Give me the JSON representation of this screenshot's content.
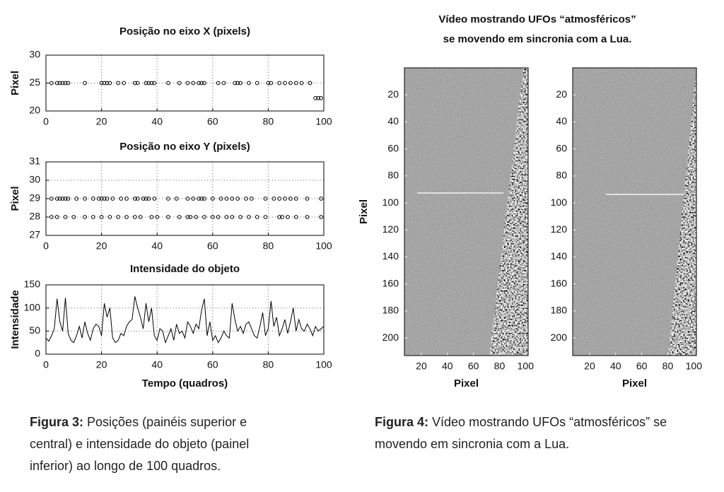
{
  "chart_data": [
    {
      "type": "scatter",
      "title": "Posição no eixo X (pixels)",
      "ylabel": "Pixel",
      "x": [
        2,
        4,
        5,
        6,
        7,
        8,
        14,
        20,
        21,
        22,
        23,
        26,
        28,
        32,
        33,
        36,
        37,
        38,
        39,
        44,
        48,
        51,
        53,
        55,
        56,
        57,
        62,
        64,
        68,
        69,
        70,
        73,
        76,
        80,
        81,
        84,
        86,
        88,
        90,
        92,
        95,
        97,
        98,
        99
      ],
      "values": [
        25,
        25,
        25,
        25,
        25,
        25,
        25,
        25,
        25,
        25,
        25,
        25,
        25,
        25,
        25,
        25,
        25,
        25,
        25,
        25,
        25,
        25,
        25,
        25,
        25,
        25,
        25,
        25,
        25,
        25,
        25,
        25,
        25,
        25,
        25,
        25,
        25,
        25,
        25,
        25,
        25,
        22.3,
        22.3,
        22.3
      ],
      "xlim": [
        0,
        100
      ],
      "ylim": [
        20,
        30
      ],
      "xticks": [
        0,
        20,
        40,
        60,
        80,
        100
      ],
      "yticks": [
        20,
        25,
        30
      ],
      "grid": true
    },
    {
      "type": "scatter",
      "title": "Posição no eixo Y (pixels)",
      "ylabel": "Pixel",
      "x": [
        2,
        4,
        5,
        6,
        7,
        8,
        11,
        14,
        17,
        19,
        20,
        21,
        22,
        24,
        27,
        29,
        32,
        33,
        35,
        36,
        37,
        39,
        44,
        47,
        51,
        53,
        55,
        56,
        57,
        60,
        63,
        65,
        67,
        69,
        72,
        74,
        79,
        82,
        84,
        86,
        88,
        90,
        94,
        99,
        2,
        4,
        7,
        10,
        14,
        17,
        20,
        23,
        26,
        29,
        32,
        34,
        38,
        40,
        44,
        48,
        51,
        52,
        54,
        57,
        60,
        62,
        65,
        67,
        70,
        73,
        76,
        79,
        84,
        85,
        87,
        90,
        94,
        99
      ],
      "values": [
        29,
        29,
        29,
        29,
        29,
        29,
        29,
        29,
        29,
        29,
        29,
        29,
        29,
        29,
        29,
        29,
        29,
        29,
        29,
        29,
        29,
        29,
        29,
        29,
        29,
        29,
        29,
        29,
        29,
        29,
        29,
        29,
        29,
        29,
        29,
        29,
        29,
        29,
        29,
        29,
        29,
        29,
        29,
        29,
        28,
        28,
        28,
        28,
        28,
        28,
        28,
        28,
        28,
        28,
        28,
        28,
        28,
        28,
        28,
        28,
        28,
        28,
        28,
        28,
        28,
        28,
        28,
        28,
        28,
        28,
        28,
        28,
        28,
        28,
        28,
        28,
        28,
        28
      ],
      "xlim": [
        0,
        100
      ],
      "ylim": [
        27,
        31
      ],
      "xticks": [
        0,
        20,
        40,
        60,
        80,
        100
      ],
      "yticks": [
        27,
        28,
        29,
        30,
        31
      ],
      "grid": true
    },
    {
      "type": "line",
      "title": "Intensidade do objeto",
      "ylabel": "Intensidade",
      "xlabel": "Tempo (quadros)",
      "x": [
        0,
        1,
        2,
        3,
        4,
        5,
        6,
        7,
        8,
        9,
        10,
        11,
        12,
        13,
        14,
        15,
        16,
        17,
        18,
        19,
        20,
        21,
        22,
        23,
        24,
        25,
        26,
        27,
        28,
        29,
        30,
        31,
        32,
        33,
        34,
        35,
        36,
        37,
        38,
        39,
        40,
        41,
        42,
        43,
        44,
        45,
        46,
        47,
        48,
        49,
        50,
        51,
        52,
        53,
        54,
        55,
        56,
        57,
        58,
        59,
        60,
        61,
        62,
        63,
        64,
        65,
        66,
        67,
        68,
        69,
        70,
        71,
        72,
        73,
        74,
        75,
        76,
        77,
        78,
        79,
        80,
        81,
        82,
        83,
        84,
        85,
        86,
        87,
        88,
        89,
        90,
        91,
        92,
        93,
        94,
        95,
        96,
        97,
        98,
        99,
        100
      ],
      "values": [
        35,
        28,
        40,
        55,
        120,
        70,
        50,
        122,
        45,
        30,
        25,
        40,
        60,
        35,
        70,
        45,
        30,
        55,
        65,
        60,
        40,
        110,
        80,
        100,
        35,
        25,
        30,
        45,
        40,
        60,
        70,
        75,
        125,
        100,
        80,
        55,
        110,
        70,
        100,
        40,
        30,
        55,
        50,
        25,
        40,
        55,
        30,
        65,
        45,
        50,
        35,
        70,
        60,
        45,
        65,
        55,
        95,
        120,
        40,
        70,
        30,
        40,
        25,
        35,
        50,
        40,
        35,
        110,
        75,
        50,
        60,
        45,
        65,
        70,
        55,
        40,
        35,
        60,
        90,
        40,
        55,
        115,
        60,
        80,
        40,
        55,
        75,
        45,
        70,
        100,
        50,
        75,
        55,
        50,
        65,
        55,
        40,
        60,
        50,
        55,
        60
      ],
      "xlim": [
        0,
        100
      ],
      "ylim": [
        0,
        150
      ],
      "xticks": [
        0,
        20,
        40,
        60,
        80,
        100
      ],
      "yticks": [
        0,
        50,
        100,
        150
      ],
      "grid": true
    },
    {
      "type": "image",
      "title": "Vídeo mostrando UFOs “atmosféricos”",
      "subtitle": "se movendo em sincronia com a Lua.",
      "ylabel": "Pixel",
      "xlabel": "Pixel",
      "xlim": [
        7,
        102
      ],
      "ylim": [
        0,
        213
      ],
      "invert_y": true,
      "xticks": [
        20,
        40,
        60,
        80,
        100
      ],
      "yticks": [
        20,
        40,
        60,
        80,
        100,
        120,
        140,
        160,
        180,
        200
      ],
      "grid": false
    },
    {
      "type": "image",
      "xlabel": "Pixel",
      "xlim": [
        7,
        102
      ],
      "ylim": [
        0,
        213
      ],
      "invert_y": true,
      "xticks": [
        20,
        40,
        60,
        80,
        100
      ],
      "yticks": [
        20,
        40,
        60,
        80,
        100,
        120,
        140,
        160,
        180,
        200
      ],
      "grid": false
    }
  ],
  "captions": [
    {
      "label": "Figura 3:",
      "text": "Posições (painéis superior e central) e intensidade do objeto (painel inferior) ao longo de 100 quadros."
    },
    {
      "label": "Figura 4:",
      "text": "Vídeo mostrando UFOs “atmosféricos” se movendo em sincronia com a Lua."
    }
  ]
}
